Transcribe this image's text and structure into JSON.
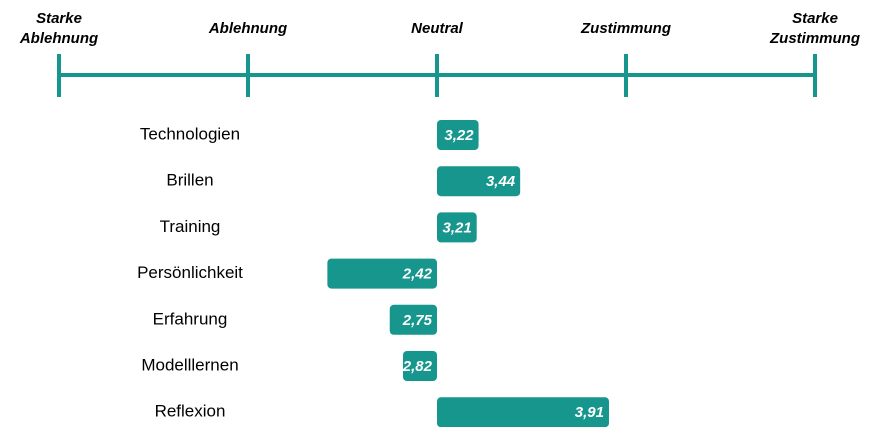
{
  "chart_data": {
    "type": "bar",
    "orientation": "horizontal",
    "categories": [
      "Technologien",
      "Brillen",
      "Training",
      "Persönlichkeit",
      "Erfahrung",
      "Modelllernen",
      "Reflexion"
    ],
    "values": [
      3.22,
      3.44,
      3.21,
      2.42,
      2.75,
      2.82,
      3.91
    ],
    "value_labels": [
      "3,22",
      "3,44",
      "3,21",
      "2,42",
      "2,75",
      "2,82",
      "3,91"
    ],
    "color": "#16968c",
    "baseline": 3,
    "xlim": [
      1,
      5
    ],
    "xticks": [
      {
        "value": 1,
        "label": "Starke Ablehnung"
      },
      {
        "value": 2,
        "label": "Ablehnung"
      },
      {
        "value": 3,
        "label": "Neutral"
      },
      {
        "value": 4,
        "label": "Zustimmung"
      },
      {
        "value": 5,
        "label": "Starke Zustimmung"
      }
    ]
  }
}
